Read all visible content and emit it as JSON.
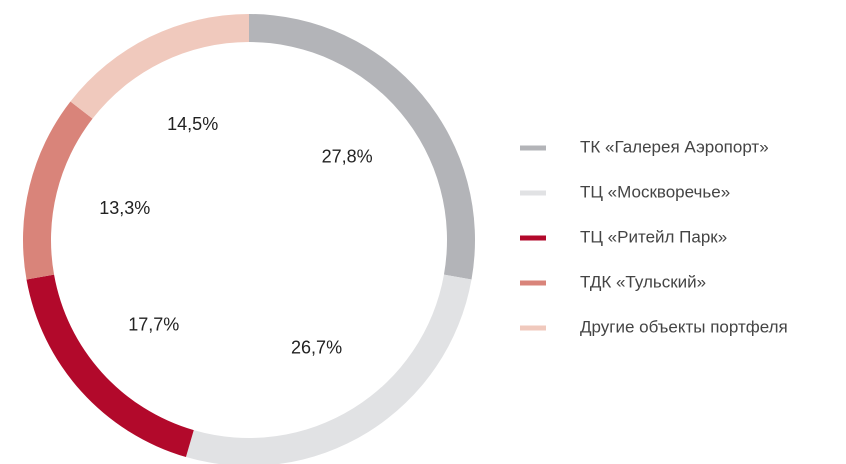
{
  "chart_data": {
    "type": "donut",
    "categories": [
      "ТК «Галерея Аэропорт»",
      "ТЦ «Москворечье»",
      "ТЦ «Ритейл Парк»",
      "ТДК «Тульский»",
      "Другие объекты портфеля"
    ],
    "values": [
      27.8,
      26.7,
      17.7,
      13.3,
      14.5
    ],
    "value_labels": [
      "27,8%",
      "26,7%",
      "17,7%",
      "13,3%",
      "14,5%"
    ],
    "colors": [
      "#b3b4b8",
      "#e1e2e4",
      "#b2092b",
      "#d9847a",
      "#f0c9bd"
    ],
    "legend": "right"
  }
}
